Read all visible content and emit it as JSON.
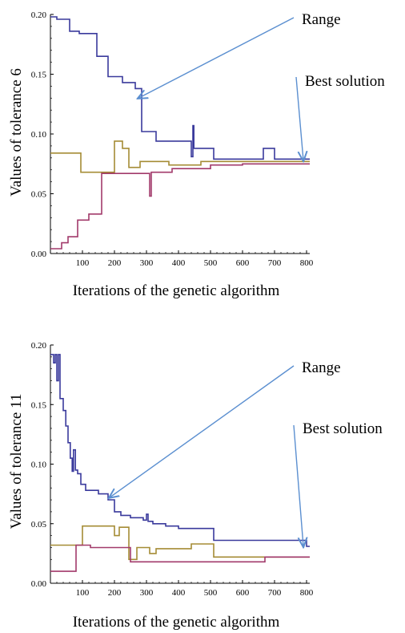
{
  "charts": [
    {
      "ylabel": "Values of tolerance 6",
      "xlabel": "Iterations of the genetic algorithm",
      "annotations": {
        "range": "Range",
        "best": "Best solution"
      }
    },
    {
      "ylabel": "Values of tolerance 11",
      "xlabel": "Iterations of the genetic algorithm",
      "annotations": {
        "range": "Range",
        "best": "Best solution"
      }
    }
  ],
  "chart_data": [
    {
      "type": "line",
      "xlabel": "Iterations of the genetic algorithm",
      "ylabel": "Values of tolerance 6",
      "xlim": [
        0,
        810
      ],
      "ylim": [
        0,
        0.2
      ],
      "x_ticks": [
        100,
        200,
        300,
        400,
        500,
        600,
        700,
        800
      ],
      "y_ticks": [
        0.0,
        0.05,
        0.1,
        0.15,
        0.2
      ],
      "y_tick_labels": [
        "0.00",
        "0.05",
        "0.10",
        "0.15",
        "0.20"
      ],
      "colors": {
        "upper": "#3a3a9c",
        "middle": "#a58c35",
        "lower": "#a23a6b"
      },
      "series": [
        {
          "points": [
            [
              0,
              0.198
            ],
            [
              20,
              0.198
            ],
            [
              20,
              0.196
            ],
            [
              60,
              0.196
            ],
            [
              60,
              0.186
            ],
            [
              90,
              0.186
            ],
            [
              90,
              0.184
            ],
            [
              145,
              0.184
            ],
            [
              145,
              0.165
            ],
            [
              180,
              0.165
            ],
            [
              180,
              0.148
            ],
            [
              225,
              0.148
            ],
            [
              225,
              0.143
            ],
            [
              265,
              0.143
            ],
            [
              265,
              0.138
            ],
            [
              285,
              0.138
            ],
            [
              285,
              0.102
            ],
            [
              330,
              0.102
            ],
            [
              330,
              0.094
            ],
            [
              440,
              0.094
            ],
            [
              440,
              0.081
            ],
            [
              445,
              0.081
            ],
            [
              445,
              0.107
            ],
            [
              448,
              0.107
            ],
            [
              448,
              0.088
            ],
            [
              510,
              0.088
            ],
            [
              510,
              0.079
            ],
            [
              665,
              0.079
            ],
            [
              665,
              0.088
            ],
            [
              700,
              0.088
            ],
            [
              700,
              0.079
            ],
            [
              810,
              0.079
            ]
          ]
        },
        {
          "points": [
            [
              0,
              0.084
            ],
            [
              95,
              0.084
            ],
            [
              95,
              0.068
            ],
            [
              200,
              0.068
            ],
            [
              200,
              0.094
            ],
            [
              225,
              0.094
            ],
            [
              225,
              0.088
            ],
            [
              245,
              0.088
            ],
            [
              245,
              0.072
            ],
            [
              280,
              0.072
            ],
            [
              280,
              0.077
            ],
            [
              370,
              0.077
            ],
            [
              370,
              0.074
            ],
            [
              470,
              0.074
            ],
            [
              470,
              0.077
            ],
            [
              810,
              0.077
            ]
          ]
        },
        {
          "points": [
            [
              0,
              0.004
            ],
            [
              35,
              0.004
            ],
            [
              35,
              0.009
            ],
            [
              55,
              0.009
            ],
            [
              55,
              0.014
            ],
            [
              85,
              0.014
            ],
            [
              85,
              0.028
            ],
            [
              120,
              0.028
            ],
            [
              120,
              0.033
            ],
            [
              160,
              0.033
            ],
            [
              160,
              0.067
            ],
            [
              310,
              0.067
            ],
            [
              310,
              0.048
            ],
            [
              315,
              0.048
            ],
            [
              315,
              0.068
            ],
            [
              380,
              0.068
            ],
            [
              380,
              0.071
            ],
            [
              500,
              0.071
            ],
            [
              500,
              0.074
            ],
            [
              600,
              0.074
            ],
            [
              600,
              0.075
            ],
            [
              810,
              0.075
            ]
          ]
        }
      ],
      "arrows": [
        {
          "label": "Range",
          "to": [
            275,
            0.13
          ]
        },
        {
          "label": "Best solution",
          "to": [
            790,
            0.078
          ]
        }
      ]
    },
    {
      "type": "line",
      "xlabel": "Iterations of the genetic algorithm",
      "ylabel": "Values of tolerance 11",
      "xlim": [
        0,
        810
      ],
      "ylim": [
        0,
        0.2
      ],
      "x_ticks": [
        100,
        200,
        300,
        400,
        500,
        600,
        700,
        800
      ],
      "y_ticks": [
        0.0,
        0.05,
        0.1,
        0.15,
        0.2
      ],
      "y_tick_labels": [
        "0.00",
        "0.05",
        "0.10",
        "0.15",
        "0.20"
      ],
      "colors": {
        "upper": "#3a3a9c",
        "middle": "#a58c35",
        "lower": "#a23a6b"
      },
      "series": [
        {
          "points": [
            [
              0,
              0.192
            ],
            [
              10,
              0.192
            ],
            [
              10,
              0.185
            ],
            [
              15,
              0.185
            ],
            [
              15,
              0.192
            ],
            [
              20,
              0.192
            ],
            [
              20,
              0.17
            ],
            [
              25,
              0.17
            ],
            [
              25,
              0.192
            ],
            [
              30,
              0.192
            ],
            [
              30,
              0.155
            ],
            [
              40,
              0.155
            ],
            [
              40,
              0.145
            ],
            [
              48,
              0.145
            ],
            [
              48,
              0.132
            ],
            [
              55,
              0.132
            ],
            [
              55,
              0.118
            ],
            [
              62,
              0.118
            ],
            [
              62,
              0.105
            ],
            [
              68,
              0.105
            ],
            [
              68,
              0.094
            ],
            [
              72,
              0.094
            ],
            [
              72,
              0.112
            ],
            [
              78,
              0.112
            ],
            [
              78,
              0.095
            ],
            [
              85,
              0.095
            ],
            [
              85,
              0.092
            ],
            [
              95,
              0.092
            ],
            [
              95,
              0.083
            ],
            [
              110,
              0.083
            ],
            [
              110,
              0.078
            ],
            [
              150,
              0.078
            ],
            [
              150,
              0.075
            ],
            [
              180,
              0.075
            ],
            [
              180,
              0.07
            ],
            [
              200,
              0.07
            ],
            [
              200,
              0.06
            ],
            [
              220,
              0.06
            ],
            [
              220,
              0.057
            ],
            [
              250,
              0.057
            ],
            [
              250,
              0.055
            ],
            [
              290,
              0.055
            ],
            [
              290,
              0.053
            ],
            [
              300,
              0.053
            ],
            [
              300,
              0.058
            ],
            [
              305,
              0.058
            ],
            [
              305,
              0.052
            ],
            [
              320,
              0.052
            ],
            [
              320,
              0.05
            ],
            [
              360,
              0.05
            ],
            [
              360,
              0.048
            ],
            [
              400,
              0.048
            ],
            [
              400,
              0.046
            ],
            [
              510,
              0.046
            ],
            [
              510,
              0.036
            ],
            [
              800,
              0.036
            ],
            [
              800,
              0.031
            ],
            [
              810,
              0.031
            ]
          ]
        },
        {
          "points": [
            [
              0,
              0.032
            ],
            [
              100,
              0.032
            ],
            [
              100,
              0.048
            ],
            [
              200,
              0.048
            ],
            [
              200,
              0.04
            ],
            [
              215,
              0.04
            ],
            [
              215,
              0.047
            ],
            [
              245,
              0.047
            ],
            [
              245,
              0.02
            ],
            [
              270,
              0.02
            ],
            [
              270,
              0.03
            ],
            [
              310,
              0.03
            ],
            [
              310,
              0.025
            ],
            [
              330,
              0.025
            ],
            [
              330,
              0.029
            ],
            [
              440,
              0.029
            ],
            [
              440,
              0.033
            ],
            [
              510,
              0.033
            ],
            [
              510,
              0.022
            ],
            [
              810,
              0.022
            ]
          ]
        },
        {
          "points": [
            [
              0,
              0.01
            ],
            [
              80,
              0.01
            ],
            [
              80,
              0.032
            ],
            [
              125,
              0.032
            ],
            [
              125,
              0.03
            ],
            [
              250,
              0.03
            ],
            [
              250,
              0.018
            ],
            [
              670,
              0.018
            ],
            [
              670,
              0.022
            ],
            [
              810,
              0.022
            ]
          ]
        }
      ],
      "arrows": [
        {
          "label": "Range",
          "to": [
            185,
            0.072
          ]
        },
        {
          "label": "Best solution",
          "to": [
            790,
            0.031
          ]
        }
      ]
    }
  ]
}
